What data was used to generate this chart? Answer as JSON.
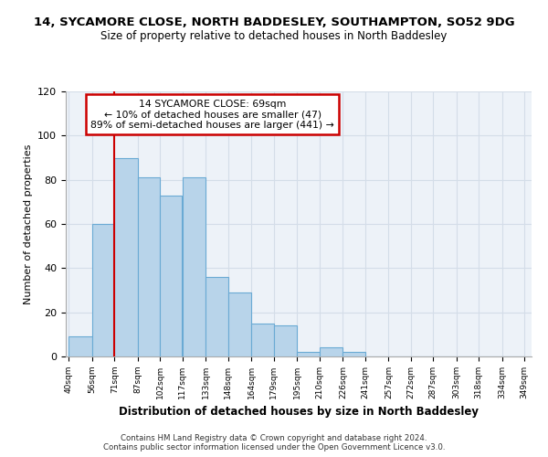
{
  "title": "14, SYCAMORE CLOSE, NORTH BADDESLEY, SOUTHAMPTON, SO52 9DG",
  "subtitle": "Size of property relative to detached houses in North Baddesley",
  "xlabel": "Distribution of detached houses by size in North Baddesley",
  "ylabel": "Number of detached properties",
  "bar_edges": [
    40,
    56,
    71,
    87,
    102,
    117,
    133,
    148,
    164,
    179,
    195,
    210,
    226,
    241,
    257,
    272,
    287,
    303,
    318,
    334,
    349
  ],
  "bar_heights": [
    9,
    60,
    90,
    81,
    73,
    81,
    36,
    29,
    15,
    14,
    2,
    4,
    2,
    0,
    0,
    0,
    0,
    0,
    0,
    0
  ],
  "bar_color": "#b8d4ea",
  "bar_edge_color": "#6aaad4",
  "vline_x": 71,
  "vline_color": "#cc0000",
  "ylim": [
    0,
    120
  ],
  "annotation_text": "14 SYCAMORE CLOSE: 69sqm\n← 10% of detached houses are smaller (47)\n89% of semi-detached houses are larger (441) →",
  "annotation_box_color": "#ffffff",
  "annotation_box_edge": "#cc0000",
  "footer1": "Contains HM Land Registry data © Crown copyright and database right 2024.",
  "footer2": "Contains public sector information licensed under the Open Government Licence v3.0.",
  "tick_labels": [
    "40sqm",
    "56sqm",
    "71sqm",
    "87sqm",
    "102sqm",
    "117sqm",
    "133sqm",
    "148sqm",
    "164sqm",
    "179sqm",
    "195sqm",
    "210sqm",
    "226sqm",
    "241sqm",
    "257sqm",
    "272sqm",
    "287sqm",
    "303sqm",
    "318sqm",
    "334sqm",
    "349sqm"
  ],
  "grid_color": "#d4dde8",
  "bg_color": "#edf2f8"
}
